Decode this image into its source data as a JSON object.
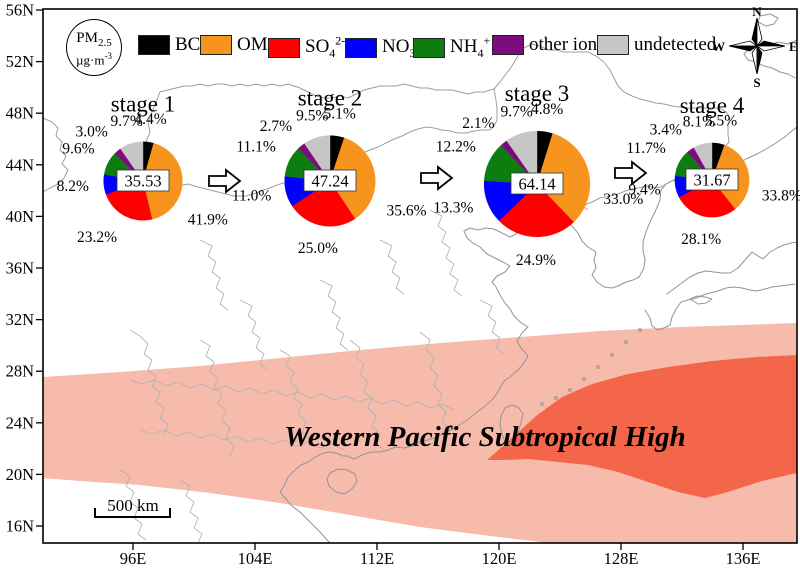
{
  "figure": {
    "pm_badge": {
      "base": "PM",
      "sub": "2.5",
      "unit_base": "µg·m",
      "unit_sup": "-3"
    },
    "legend": [
      {
        "name": "BC",
        "base": "BC",
        "sub": "",
        "sup": "",
        "color": "#000000"
      },
      {
        "name": "OM",
        "base": "OM",
        "sub": "",
        "sup": "",
        "color": "#F7941E"
      },
      {
        "name": "SO4 2-",
        "base": "SO",
        "sub": "4",
        "sup": "2-",
        "color": "#FE0000"
      },
      {
        "name": "NO3 -",
        "base": "NO",
        "sub": "3",
        "sup": "-",
        "color": "#0000FE"
      },
      {
        "name": "NH4 +",
        "base": "NH",
        "sub": "4",
        "sup": "+",
        "color": "#0E7D10"
      },
      {
        "name": "other ions",
        "base": "other ions",
        "sub": "",
        "sup": "",
        "color": "#7B0C7E"
      },
      {
        "name": "undetected",
        "base": "undetected",
        "sub": "",
        "sup": "",
        "color": "#C6C6C6"
      }
    ],
    "compass": {
      "n": "N",
      "e": "E",
      "s": "S",
      "w": "W"
    },
    "map_label": "Western Pacific Subtropical High",
    "scale_bar": "500 km",
    "axes": {
      "lat_ticks": [
        "56N",
        "52N",
        "48N",
        "44N",
        "40N",
        "36N",
        "32N",
        "28N",
        "24N",
        "20N",
        "16N"
      ],
      "lon_ticks": [
        "96E",
        "104E",
        "112E",
        "120E",
        "128E",
        "136E"
      ]
    },
    "region_colors": {
      "outer": "#F7BBAB",
      "core": "#F4664A",
      "label": "#A6121C"
    }
  },
  "chart_data": {
    "type": "pie",
    "components": [
      "BC",
      "OM",
      "SO4^2-",
      "NO3^-",
      "NH4^+",
      "other ions",
      "undetected"
    ],
    "colors": [
      "#000000",
      "#F7941E",
      "#FE0000",
      "#0000FE",
      "#0E7D10",
      "#7B0C7E",
      "#C6C6C6"
    ],
    "center_value_label": "PM2.5 (µg·m-3)",
    "legend_position": "top",
    "stages": [
      {
        "label": "stage 1",
        "pm25": 35.53,
        "percent": [
          4.4,
          41.9,
          23.2,
          8.2,
          9.6,
          3.0,
          9.7
        ]
      },
      {
        "label": "stage 2",
        "pm25": 47.24,
        "percent": [
          5.1,
          35.6,
          25.0,
          11.0,
          11.1,
          2.7,
          9.5
        ]
      },
      {
        "label": "stage 3",
        "pm25": 64.14,
        "percent": [
          4.8,
          33.0,
          24.9,
          13.3,
          12.2,
          2.1,
          9.7
        ]
      },
      {
        "label": "stage 4",
        "pm25": 31.67,
        "percent": [
          5.5,
          33.8,
          28.1,
          9.4,
          11.7,
          3.4,
          8.1
        ]
      }
    ]
  }
}
